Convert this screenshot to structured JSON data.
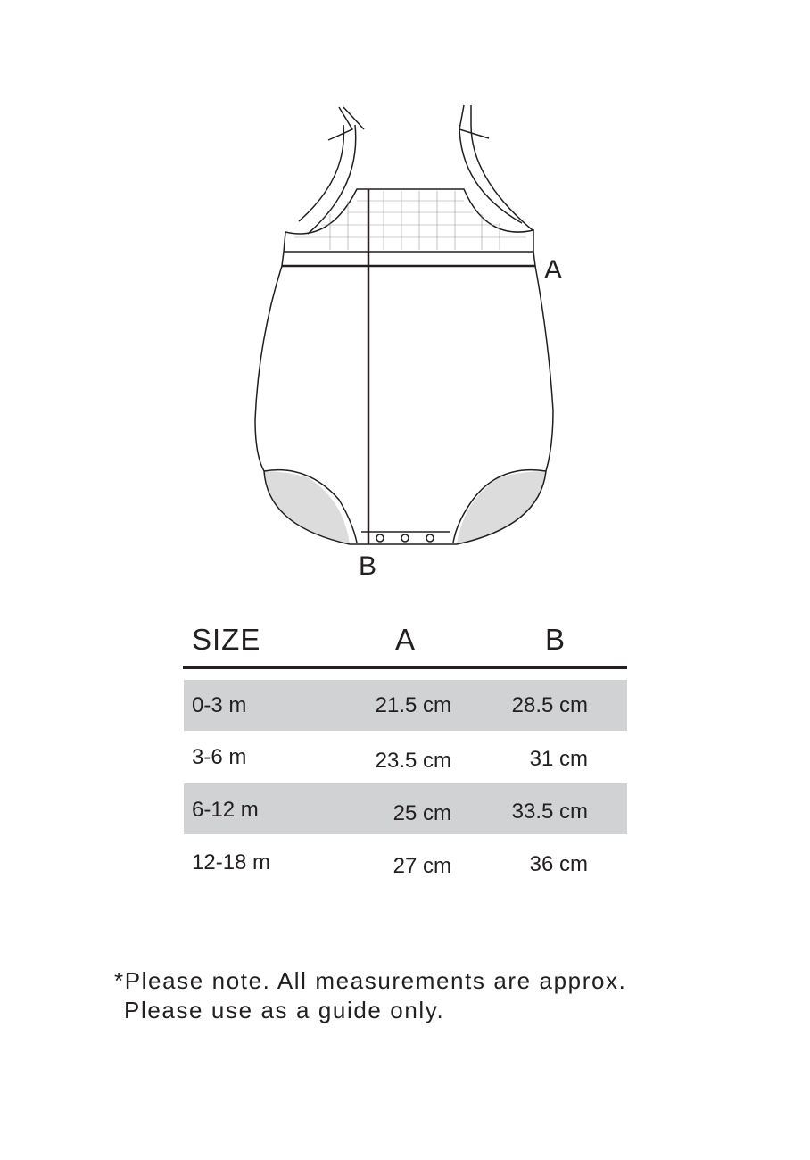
{
  "diagram": {
    "label_a": "A",
    "label_b": "B",
    "shade_color": "#dcdcdc"
  },
  "table": {
    "headers": [
      "SIZE",
      "A",
      "B"
    ],
    "rows": [
      {
        "size": "0-3 m",
        "a": "21.5 cm",
        "b": "28.5 cm"
      },
      {
        "size": "3-6 m",
        "a": "23.5 cm",
        "b": "31 cm"
      },
      {
        "size": "6-12 m",
        "a": "25 cm",
        "b": "33.5 cm"
      },
      {
        "size": "12-18 m",
        "a": "27 cm",
        "b": "36 cm"
      }
    ],
    "row_shade_color": "#d1d2d4"
  },
  "note": {
    "line1": "*Please note. All measurements are approx.",
    "line2": "Please use as a guide only."
  }
}
